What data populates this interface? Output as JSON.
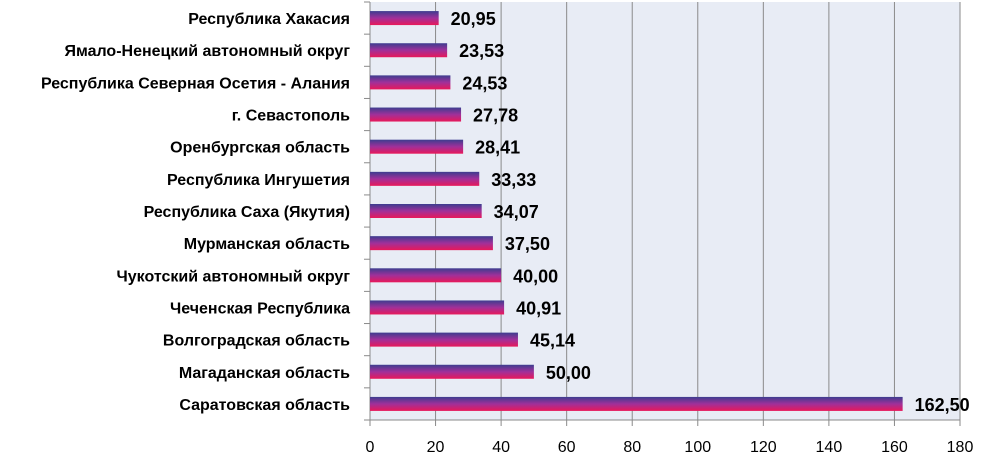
{
  "chart_data": {
    "type": "bar",
    "orientation": "horizontal",
    "categories": [
      "Республика Хакасия",
      "Ямало-Ненецкий автономный округ",
      "Республика Северная Осетия - Алания",
      "г. Севастополь",
      "Оренбургская область",
      "Республика Ингушетия",
      "Республика Саха (Якутия)",
      "Мурманская область",
      "Чукотский автономный округ",
      "Чеченская Республика",
      "Волгоградская область",
      "Магаданская область",
      "Саратовская область"
    ],
    "values": [
      20.95,
      23.53,
      24.53,
      27.78,
      28.41,
      33.33,
      34.07,
      37.5,
      40.0,
      40.91,
      45.14,
      50.0,
      162.5
    ],
    "value_labels": [
      "20,95",
      "23,53",
      "24,53",
      "27,78",
      "28,41",
      "33,33",
      "34,07",
      "37,50",
      "40,00",
      "40,91",
      "45,14",
      "50,00",
      "162,50"
    ],
    "x_ticks": [
      "0",
      "20",
      "40",
      "60",
      "80",
      "100",
      "120",
      "140",
      "160",
      "180"
    ],
    "xlim": [
      0,
      180
    ],
    "grid": "vertical",
    "legend": "none",
    "colors": {
      "plot_bg": "#e8ecf5",
      "grid": "#8a8a8a",
      "bar_top": "#3d3d8f",
      "bar_mid": "#a0309a",
      "bar_bottom": "#e8185a",
      "axis": "#8a8a8a"
    }
  }
}
